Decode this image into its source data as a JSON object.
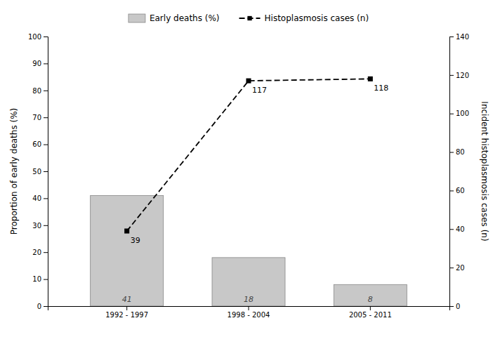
{
  "chart_data": {
    "type": "bar",
    "categories": [
      "1992 - 1997",
      "1998 - 2004",
      "2005 - 2011"
    ],
    "series": [
      {
        "name": "Early deaths (%)",
        "type": "bar",
        "color": "#c8c8c8",
        "values": [
          41,
          18,
          8
        ],
        "data_labels": true
      },
      {
        "name": "Histoplasmosis cases (n)",
        "type": "line",
        "axis": "y2",
        "color": "#000000",
        "line_style": "dashed",
        "marker": "square",
        "values": [
          39,
          117,
          118
        ],
        "data_labels": true
      }
    ],
    "ylabel": "Proportion of early deaths (%)",
    "y2label": "Incident histoplasmosis cases (n)",
    "ylim": [
      0,
      100
    ],
    "yticks": [
      0,
      10,
      20,
      30,
      40,
      50,
      60,
      70,
      80,
      90,
      100
    ],
    "y2lim": [
      0,
      140
    ],
    "y2ticks": [
      0,
      20,
      40,
      60,
      80,
      100,
      120,
      140
    ],
    "legend": "top",
    "grid": false
  }
}
